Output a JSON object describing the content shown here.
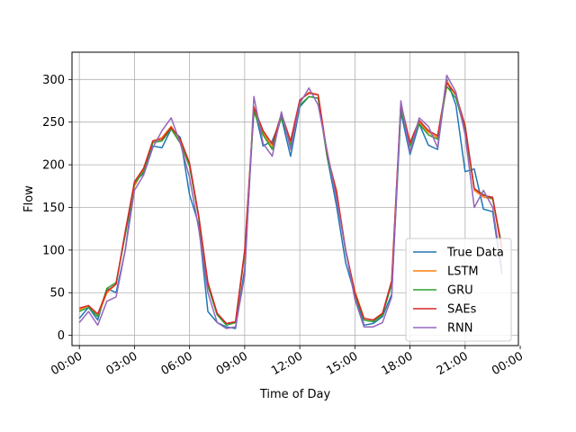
{
  "chart_data": {
    "type": "line",
    "title": "",
    "xlabel": "Time of Day",
    "ylabel": "Flow",
    "xlim": [
      -0.4,
      23.9
    ],
    "ylim": [
      -12,
      332
    ],
    "x_unit": "hours",
    "xticks": [
      {
        "value": 0,
        "label": "00:00"
      },
      {
        "value": 3,
        "label": "03:00"
      },
      {
        "value": 6,
        "label": "06:00"
      },
      {
        "value": 9,
        "label": "09:00"
      },
      {
        "value": 12,
        "label": "12:00"
      },
      {
        "value": 15,
        "label": "15:00"
      },
      {
        "value": 18,
        "label": "18:00"
      },
      {
        "value": 21,
        "label": "21:00"
      },
      {
        "value": 24,
        "label": "00:00"
      }
    ],
    "yticks": [
      0,
      50,
      100,
      150,
      200,
      250,
      300
    ],
    "grid": true,
    "legend_position": "lower-right",
    "x": [
      0.0,
      0.5,
      1.0,
      1.5,
      2.0,
      2.5,
      3.0,
      3.5,
      4.0,
      4.5,
      5.0,
      5.5,
      6.0,
      6.5,
      7.0,
      7.5,
      8.0,
      8.5,
      9.0,
      9.5,
      10.0,
      10.5,
      11.0,
      11.5,
      12.0,
      12.5,
      13.0,
      13.5,
      14.0,
      14.5,
      15.0,
      15.5,
      16.0,
      16.5,
      17.0,
      17.5,
      18.0,
      18.5,
      19.0,
      19.5,
      20.0,
      20.5,
      21.0,
      21.5,
      22.0,
      22.5,
      23.0
    ],
    "series": [
      {
        "name": "True Data",
        "color": "#1f77b4",
        "values": [
          20,
          33,
          18,
          55,
          50,
          100,
          180,
          190,
          222,
          220,
          242,
          232,
          165,
          130,
          28,
          15,
          10,
          8,
          78,
          268,
          222,
          228,
          255,
          210,
          268,
          280,
          278,
          208,
          152,
          85,
          48,
          12,
          14,
          22,
          48,
          262,
          212,
          248,
          223,
          218,
          300,
          270,
          192,
          195,
          148,
          145,
          72
        ]
      },
      {
        "name": "LSTM",
        "color": "#ff7f0e",
        "values": [
          30,
          35,
          22,
          50,
          60,
          120,
          175,
          195,
          228,
          232,
          245,
          228,
          200,
          140,
          60,
          25,
          14,
          15,
          95,
          268,
          238,
          220,
          258,
          225,
          275,
          285,
          282,
          210,
          170,
          100,
          52,
          20,
          18,
          25,
          62,
          270,
          225,
          250,
          238,
          232,
          298,
          282,
          245,
          170,
          162,
          160,
          100
        ]
      },
      {
        "name": "GRU",
        "color": "#2ca02c",
        "values": [
          28,
          33,
          22,
          55,
          62,
          118,
          178,
          192,
          226,
          228,
          242,
          225,
          198,
          138,
          58,
          24,
          12,
          15,
          98,
          262,
          235,
          218,
          256,
          222,
          270,
          280,
          278,
          208,
          165,
          98,
          48,
          18,
          16,
          24,
          60,
          265,
          222,
          248,
          235,
          230,
          292,
          278,
          240,
          172,
          165,
          160,
          105
        ]
      },
      {
        "name": "SAEs",
        "color": "#d62728",
        "values": [
          32,
          35,
          25,
          52,
          60,
          122,
          180,
          196,
          228,
          230,
          244,
          230,
          202,
          140,
          62,
          26,
          14,
          16,
          100,
          268,
          240,
          224,
          260,
          228,
          276,
          284,
          282,
          212,
          168,
          100,
          50,
          20,
          18,
          26,
          64,
          272,
          226,
          252,
          240,
          234,
          296,
          282,
          246,
          172,
          164,
          162,
          102
        ]
      },
      {
        "name": "RNN",
        "color": "#9467bd",
        "values": [
          15,
          28,
          12,
          40,
          45,
          100,
          170,
          188,
          220,
          240,
          255,
          225,
          185,
          125,
          50,
          15,
          8,
          10,
          70,
          280,
          225,
          210,
          262,
          218,
          272,
          290,
          270,
          215,
          160,
          100,
          42,
          10,
          10,
          15,
          45,
          275,
          215,
          255,
          245,
          220,
          305,
          285,
          235,
          150,
          170,
          150,
          78
        ]
      }
    ]
  }
}
